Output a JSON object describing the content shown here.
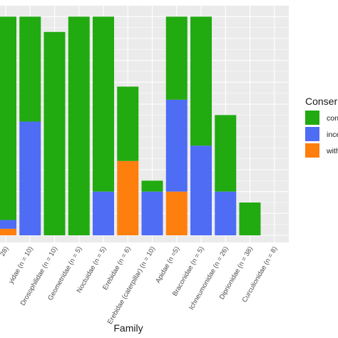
{
  "chart_data": {
    "type": "bar",
    "stacked": true,
    "xlabel": "Family",
    "ylabel": "",
    "ylim": [
      0,
      1.05
    ],
    "grid": true,
    "legend_title": "Conser",
    "legend_position": "right",
    "categories": [
      "28)",
      "yidae (n = 10)",
      "Drosophilidae (n = 10)",
      "Geometridae (n = 5)",
      "Noctuidae (n = 5)",
      "Erebidae (n = 6)",
      "Erebidae (caterpillar) (n = 10)",
      "Apidae (n =5)",
      "Braconidae (n = 5)",
      "Ichneumonidae (n = 26)",
      "Diprionidae (n = 38)",
      "Curculionidae (n = 8)"
    ],
    "series": [
      {
        "name": "with",
        "color": "#FF7F0E",
        "values": [
          0.03,
          0,
          0,
          0,
          0,
          0.34,
          0,
          0.2,
          0,
          0,
          0,
          0
        ]
      },
      {
        "name": "ince",
        "color": "#4F6CF5",
        "values": [
          0.04,
          0.52,
          0,
          0,
          0.2,
          0,
          0.2,
          0.42,
          0.41,
          0.2,
          0,
          0
        ]
      },
      {
        "name": "con",
        "color": "#22AA11",
        "values": [
          0.93,
          0.48,
          0.93,
          1.0,
          0.8,
          0.34,
          0.05,
          0.38,
          0.59,
          0.35,
          0.15,
          0
        ]
      }
    ],
    "legend_order": [
      "con",
      "ince",
      "with"
    ]
  }
}
